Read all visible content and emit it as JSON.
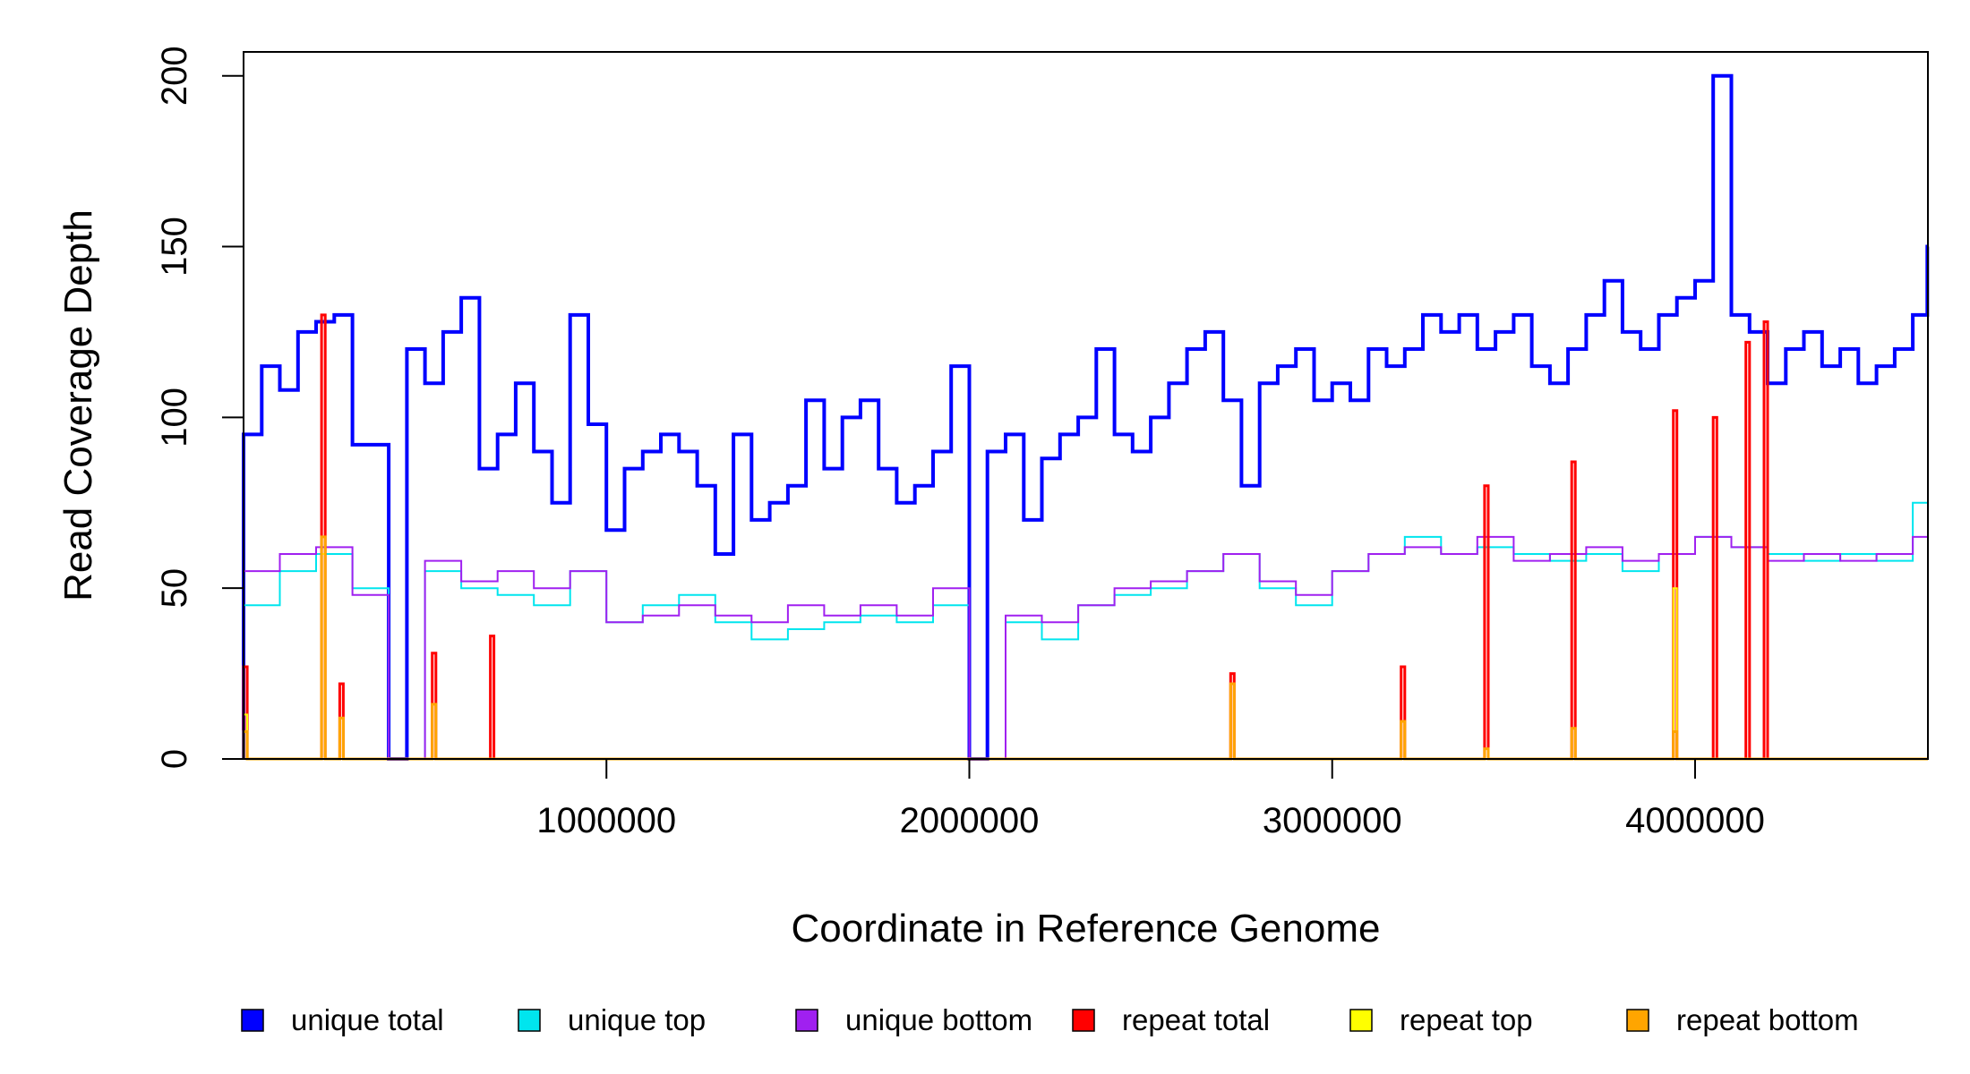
{
  "chart_data": {
    "type": "line",
    "title": "",
    "xlabel": "Coordinate in Reference Genome",
    "ylabel": "Read Coverage Depth",
    "xlim": [
      1,
      4641652
    ],
    "ylim": [
      0,
      207
    ],
    "x_ticks": [
      1000000,
      2000000,
      3000000,
      4000000
    ],
    "x_tick_labels": [
      "1000000",
      "2000000",
      "3000000",
      "4000000"
    ],
    "y_ticks": [
      0,
      50,
      100,
      150,
      200
    ],
    "y_tick_labels": [
      "0",
      "50",
      "100",
      "150",
      "200"
    ],
    "grid": false,
    "legend_position": "bottom",
    "bin_width": 10000,
    "series": [
      {
        "name": "unique total",
        "color": "#0000ff",
        "x": [
          0,
          50000,
          100000,
          150000,
          200000,
          250000,
          300000,
          400000,
          450000,
          500000,
          550000,
          600000,
          650000,
          700000,
          750000,
          800000,
          850000,
          900000,
          950000,
          1000000,
          1050000,
          1100000,
          1150000,
          1200000,
          1250000,
          1300000,
          1350000,
          1400000,
          1450000,
          1500000,
          1550000,
          1600000,
          1650000,
          1700000,
          1750000,
          1800000,
          1850000,
          1900000,
          1950000,
          2000000,
          2050000,
          2100000,
          2150000,
          2200000,
          2250000,
          2300000,
          2350000,
          2400000,
          2450000,
          2500000,
          2550000,
          2600000,
          2650000,
          2700000,
          2750000,
          2800000,
          2850000,
          2900000,
          2950000,
          3000000,
          3050000,
          3100000,
          3150000,
          3200000,
          3250000,
          3300000,
          3350000,
          3400000,
          3450000,
          3500000,
          3550000,
          3600000,
          3650000,
          3700000,
          3750000,
          3800000,
          3850000,
          3900000,
          3950000,
          4000000,
          4050000,
          4100000,
          4150000,
          4200000,
          4250000,
          4300000,
          4350000,
          4400000,
          4450000,
          4500000,
          4550000,
          4600000,
          4640000
        ],
        "values": [
          95,
          115,
          108,
          125,
          128,
          130,
          92,
          0,
          120,
          110,
          125,
          135,
          85,
          95,
          110,
          90,
          75,
          130,
          98,
          67,
          85,
          90,
          95,
          90,
          80,
          60,
          95,
          70,
          75,
          80,
          105,
          85,
          100,
          105,
          85,
          75,
          80,
          90,
          115,
          0,
          90,
          95,
          70,
          88,
          95,
          100,
          120,
          95,
          90,
          100,
          110,
          120,
          125,
          105,
          80,
          110,
          115,
          120,
          105,
          110,
          105,
          120,
          115,
          120,
          130,
          125,
          130,
          120,
          125,
          130,
          115,
          110,
          120,
          130,
          140,
          125,
          120,
          130,
          135,
          140,
          200,
          130,
          125,
          110,
          120,
          125,
          115,
          120,
          110,
          115,
          120,
          130,
          150
        ]
      },
      {
        "name": "unique top",
        "color": "#00e5ee",
        "x": [
          0,
          100000,
          200000,
          300000,
          400000,
          500000,
          600000,
          700000,
          800000,
          900000,
          1000000,
          1100000,
          1200000,
          1300000,
          1400000,
          1500000,
          1600000,
          1700000,
          1800000,
          1900000,
          2000000,
          2100000,
          2200000,
          2300000,
          2400000,
          2500000,
          2600000,
          2700000,
          2800000,
          2900000,
          3000000,
          3100000,
          3200000,
          3300000,
          3400000,
          3500000,
          3600000,
          3700000,
          3800000,
          3900000,
          4000000,
          4100000,
          4200000,
          4300000,
          4400000,
          4500000,
          4600000,
          4640000
        ],
        "values": [
          45,
          55,
          60,
          50,
          0,
          55,
          50,
          48,
          45,
          55,
          40,
          45,
          48,
          40,
          35,
          38,
          40,
          42,
          40,
          45,
          0,
          40,
          35,
          45,
          48,
          50,
          55,
          60,
          50,
          45,
          55,
          60,
          65,
          60,
          62,
          60,
          58,
          60,
          55,
          60,
          65,
          62,
          60,
          58,
          60,
          58,
          75,
          75
        ]
      },
      {
        "name": "unique bottom",
        "color": "#a020f0",
        "x": [
          0,
          100000,
          200000,
          300000,
          400000,
          500000,
          600000,
          700000,
          800000,
          900000,
          1000000,
          1100000,
          1200000,
          1300000,
          1400000,
          1500000,
          1600000,
          1700000,
          1800000,
          1900000,
          2000000,
          2100000,
          2200000,
          2300000,
          2400000,
          2500000,
          2600000,
          2700000,
          2800000,
          2900000,
          3000000,
          3100000,
          3200000,
          3300000,
          3400000,
          3500000,
          3600000,
          3700000,
          3800000,
          3900000,
          4000000,
          4100000,
          4200000,
          4300000,
          4400000,
          4500000,
          4600000,
          4640000
        ],
        "values": [
          55,
          60,
          62,
          48,
          0,
          58,
          52,
          55,
          50,
          55,
          40,
          42,
          45,
          42,
          40,
          45,
          42,
          45,
          42,
          50,
          0,
          42,
          40,
          45,
          50,
          52,
          55,
          60,
          52,
          48,
          55,
          60,
          62,
          60,
          65,
          58,
          60,
          62,
          58,
          60,
          65,
          62,
          58,
          60,
          58,
          60,
          65,
          65
        ]
      },
      {
        "name": "repeat total",
        "color": "#ff0000",
        "x": [
          0,
          10000,
          215000,
          225000,
          265000,
          275000,
          520000,
          530000,
          680000,
          690000,
          2720000,
          2730000,
          3190000,
          3200000,
          3420000,
          3430000,
          3660000,
          3670000,
          3940000,
          3950000,
          4050000,
          4060000,
          4140000,
          4150000,
          4190000,
          4200000,
          4640000
        ],
        "values": [
          27,
          0,
          130,
          0,
          22,
          0,
          31,
          0,
          36,
          0,
          25,
          0,
          27,
          0,
          80,
          0,
          87,
          0,
          102,
          0,
          100,
          0,
          122,
          0,
          128,
          0,
          0
        ]
      },
      {
        "name": "repeat top",
        "color": "#ffff00",
        "x": [
          0,
          10000,
          215000,
          225000,
          3940000,
          3950000,
          4640000
        ],
        "values": [
          13,
          0,
          60,
          0,
          50,
          0,
          0
        ]
      },
      {
        "name": "repeat bottom",
        "color": "#ffa500",
        "x": [
          0,
          10000,
          215000,
          225000,
          265000,
          275000,
          520000,
          530000,
          2720000,
          2730000,
          3190000,
          3200000,
          3420000,
          3430000,
          3660000,
          3670000,
          3940000,
          3950000,
          4640000
        ],
        "values": [
          8,
          0,
          65,
          0,
          12,
          0,
          16,
          0,
          22,
          0,
          11,
          0,
          3,
          0,
          9,
          0,
          8,
          0,
          0
        ]
      }
    ]
  }
}
